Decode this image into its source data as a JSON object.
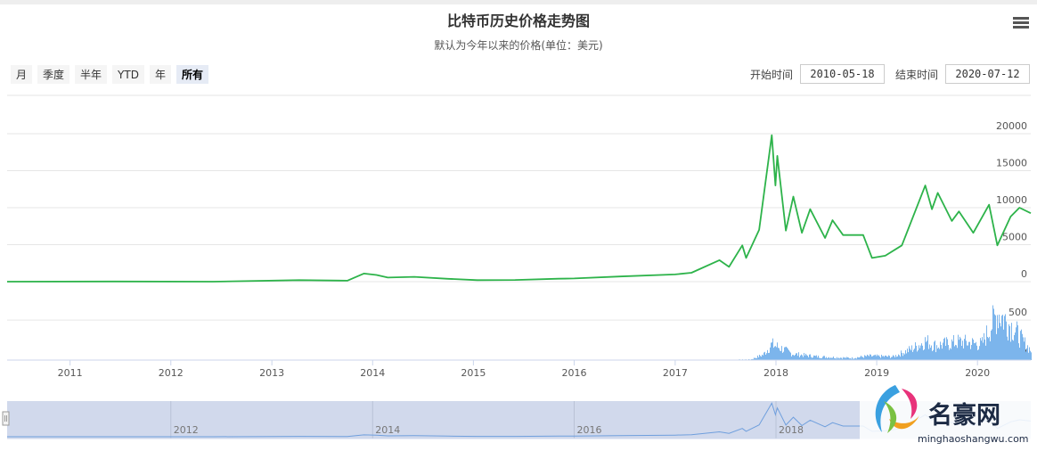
{
  "header": {
    "title": "比特币历史价格走势图",
    "subtitle": "默认为今年以来的价格(单位：美元)"
  },
  "range_selector": {
    "buttons": [
      "月",
      "季度",
      "半年",
      "YTD",
      "年",
      "所有"
    ],
    "active": "所有"
  },
  "date_inputs": {
    "start_label": "开始时间",
    "start_value": "2010-05-18",
    "end_label": "结束时间",
    "end_value": "2020-07-12"
  },
  "watermark": "名豪网 minghaoshangwu.com",
  "colors": {
    "price_line": "#2db34a",
    "volume_bar": "#7cb5ec",
    "navigator_fill": "#d1d9ec"
  },
  "chart_data": {
    "type": "line",
    "x_range": [
      "2010-05-18",
      "2020-07-12"
    ],
    "x_ticks": [
      "2011",
      "2012",
      "2013",
      "2014",
      "2015",
      "2016",
      "2017",
      "2018",
      "2019",
      "2020"
    ],
    "navigator_ticks": [
      "2012",
      "2014",
      "2016",
      "2018"
    ],
    "price": {
      "yticks": [
        0,
        5000,
        10000,
        15000,
        20000
      ],
      "ylim": [
        0,
        20000
      ],
      "points": [
        [
          "2010-05-18",
          0
        ],
        [
          "2011-06-10",
          20
        ],
        [
          "2012-06-01",
          6
        ],
        [
          "2013-04-10",
          200
        ],
        [
          "2013-10-01",
          130
        ],
        [
          "2013-11-30",
          1100
        ],
        [
          "2014-01-15",
          900
        ],
        [
          "2014-02-25",
          550
        ],
        [
          "2014-06-01",
          650
        ],
        [
          "2014-10-01",
          380
        ],
        [
          "2015-01-15",
          210
        ],
        [
          "2015-06-01",
          230
        ],
        [
          "2015-11-05",
          400
        ],
        [
          "2016-01-01",
          430
        ],
        [
          "2016-06-15",
          700
        ],
        [
          "2016-12-31",
          970
        ],
        [
          "2017-03-01",
          1200
        ],
        [
          "2017-06-10",
          2900
        ],
        [
          "2017-07-15",
          2000
        ],
        [
          "2017-09-01",
          4900
        ],
        [
          "2017-09-15",
          3200
        ],
        [
          "2017-11-01",
          7000
        ],
        [
          "2017-12-17",
          19800
        ],
        [
          "2017-12-30",
          13000
        ],
        [
          "2018-01-06",
          17000
        ],
        [
          "2018-02-06",
          6900
        ],
        [
          "2018-03-05",
          11500
        ],
        [
          "2018-04-05",
          6600
        ],
        [
          "2018-05-05",
          9800
        ],
        [
          "2018-06-28",
          5900
        ],
        [
          "2018-07-25",
          8300
        ],
        [
          "2018-09-01",
          6300
        ],
        [
          "2018-11-13",
          6300
        ],
        [
          "2018-12-15",
          3200
        ],
        [
          "2019-02-01",
          3500
        ],
        [
          "2019-04-02",
          4900
        ],
        [
          "2019-06-26",
          13000
        ],
        [
          "2019-07-20",
          9800
        ],
        [
          "2019-08-10",
          12000
        ],
        [
          "2019-09-30",
          8200
        ],
        [
          "2019-10-26",
          9500
        ],
        [
          "2019-12-17",
          6600
        ],
        [
          "2020-02-12",
          10400
        ],
        [
          "2020-03-13",
          4900
        ],
        [
          "2020-04-30",
          8800
        ],
        [
          "2020-06-01",
          10000
        ],
        [
          "2020-07-12",
          9250
        ]
      ]
    },
    "volume": {
      "yticks": [
        0,
        500
      ],
      "ylim": [
        0,
        780
      ],
      "points": [
        [
          "2010-05-18",
          0
        ],
        [
          "2017-06-01",
          0
        ],
        [
          "2017-10-01",
          10
        ],
        [
          "2017-11-15",
          80
        ],
        [
          "2017-12-15",
          230
        ],
        [
          "2018-01-20",
          170
        ],
        [
          "2018-03-01",
          90
        ],
        [
          "2018-06-01",
          50
        ],
        [
          "2018-10-01",
          30
        ],
        [
          "2018-12-01",
          60
        ],
        [
          "2019-03-01",
          50
        ],
        [
          "2019-05-15",
          180
        ],
        [
          "2019-06-26",
          280
        ],
        [
          "2019-08-01",
          210
        ],
        [
          "2019-10-26",
          270
        ],
        [
          "2020-01-15",
          230
        ],
        [
          "2020-03-13",
          700
        ],
        [
          "2020-05-10",
          460
        ],
        [
          "2020-06-15",
          260
        ],
        [
          "2020-07-12",
          140
        ]
      ]
    }
  }
}
